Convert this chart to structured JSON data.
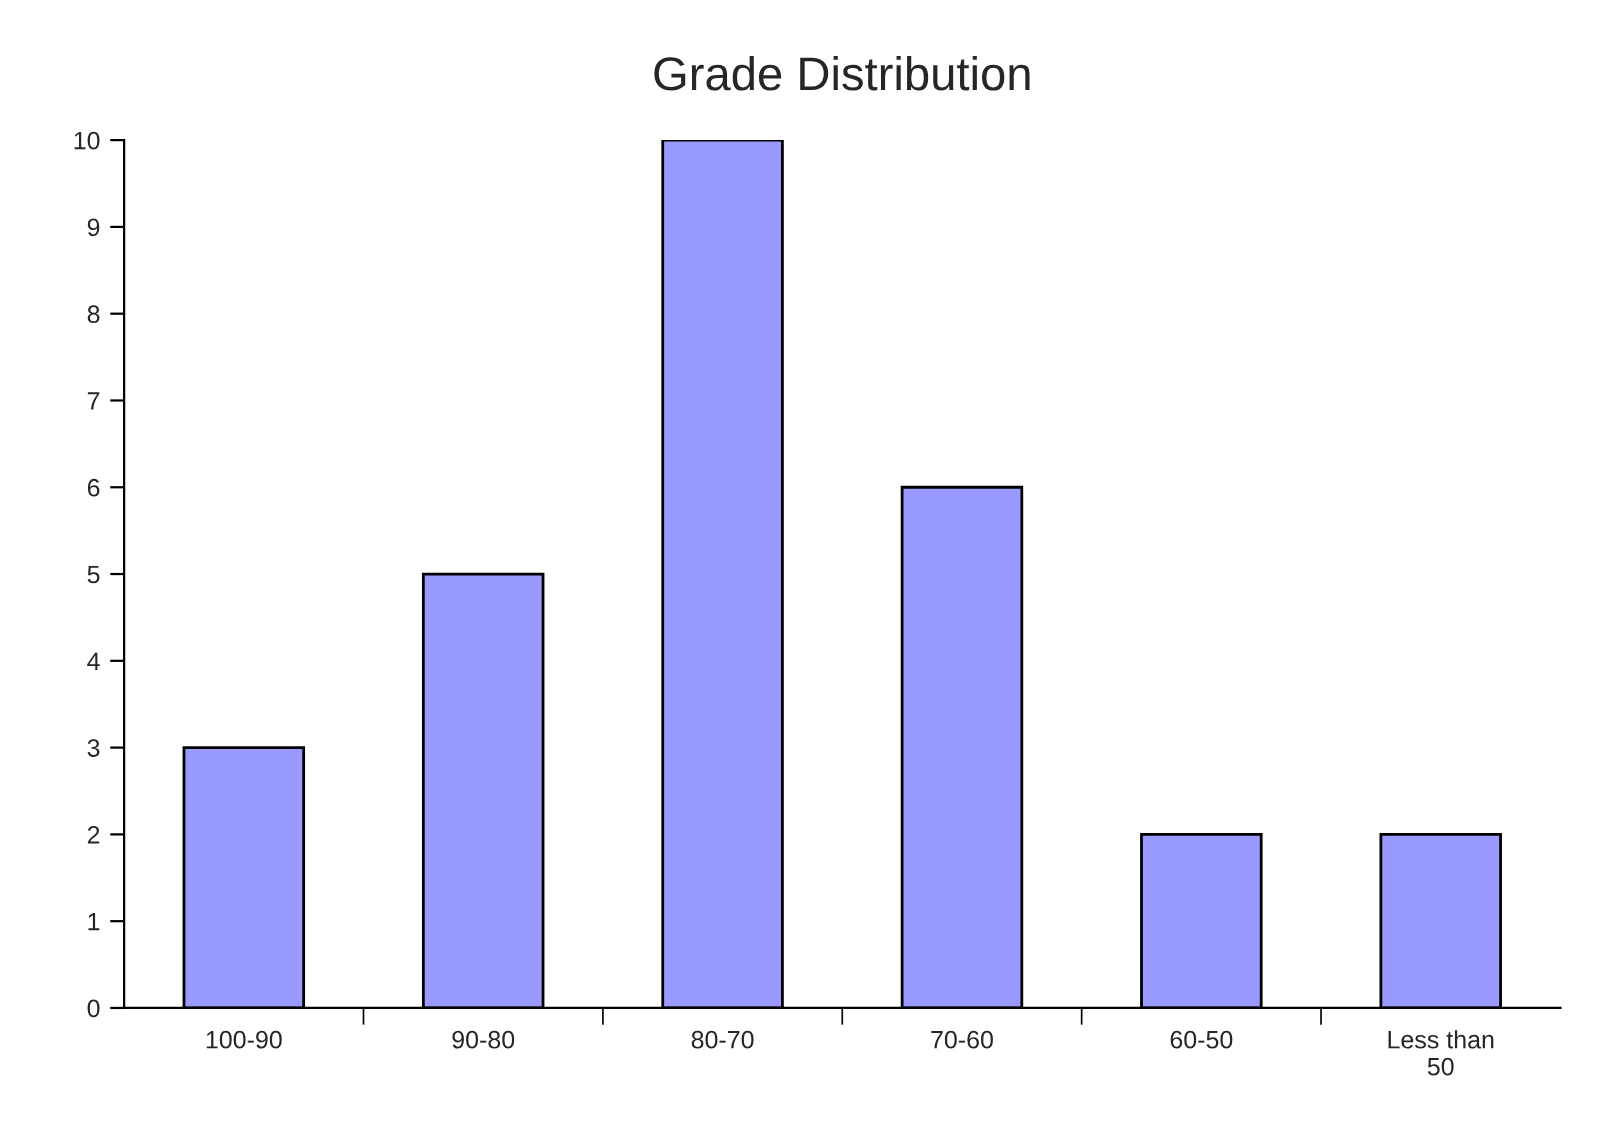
{
  "chart_data": {
    "type": "bar",
    "title": "Grade Distribution",
    "categories": [
      "100-90",
      "90-80",
      "80-70",
      "70-60",
      "60-50",
      "Less than\n50"
    ],
    "values": [
      3,
      5,
      10,
      6,
      2,
      2
    ],
    "color": "#9999ff",
    "ylim": [
      0,
      10
    ],
    "yticks": [
      0,
      1,
      2,
      3,
      4,
      5,
      6,
      7,
      8,
      9,
      10
    ],
    "grid": false,
    "legend": false
  }
}
